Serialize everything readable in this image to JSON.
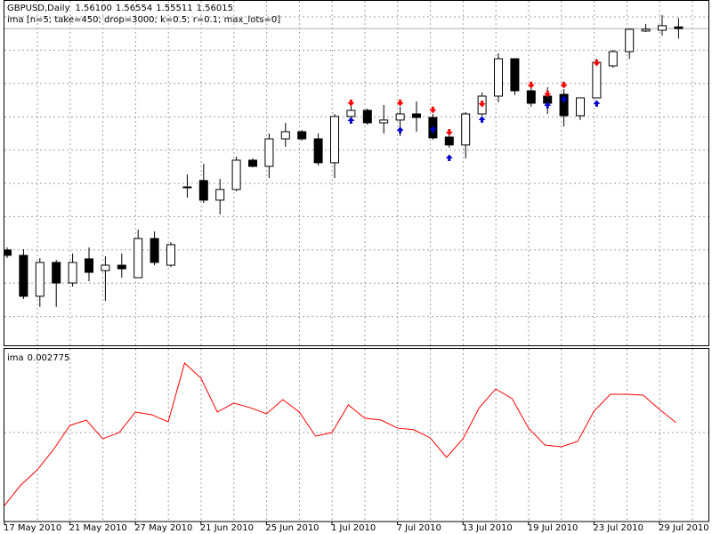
{
  "chart_data": [
    {
      "type": "candlestick",
      "title": "GBPUSD,Daily",
      "subtitle": "ima [n=5; take=450; drop=3000; k=0.5; r=0.1; max_lots=0]",
      "categories": [
        "17 May 2010",
        null,
        null,
        null,
        "21 May 2010",
        null,
        null,
        null,
        "27 May 2010",
        null,
        null,
        null,
        "21 Jun 2010",
        null,
        null,
        null,
        "25 Jun 2010",
        null,
        null,
        null,
        "1 Jul 2010",
        null,
        null,
        null,
        "7 Jul 2010",
        null,
        null,
        null,
        "13 Jul 2010",
        null,
        null,
        null,
        "19 Jul 2010",
        null,
        null,
        null,
        "23 Jul 2010",
        null,
        null,
        null,
        "29 Jul 2010",
        null
      ],
      "open": [
        1.4482,
        1.4455,
        1.4248,
        1.4419,
        1.4315,
        1.4437,
        1.4378,
        1.4405,
        1.4342,
        1.454,
        1.4405,
        1.4801,
        1.4833,
        1.4734,
        1.4788,
        1.4936,
        1.4905,
        1.5044,
        1.508,
        1.5044,
        1.4923,
        1.5157,
        1.5188,
        1.5125,
        1.5139,
        1.517,
        1.5152,
        1.5053,
        1.5013,
        1.517,
        1.526,
        1.5449,
        1.5287,
        1.526,
        1.5269,
        1.5161,
        1.5251,
        1.5413,
        1.5485,
        1.5589,
        1.5593,
        1.561
      ],
      "high": [
        1.4495,
        1.4486,
        1.4441,
        1.4432,
        1.4464,
        1.4495,
        1.445,
        1.4464,
        1.4585,
        1.4576,
        1.4522,
        1.4864,
        1.4918,
        1.4842,
        1.4954,
        1.4945,
        1.5071,
        1.5125,
        1.5089,
        1.5071,
        1.517,
        1.5215,
        1.5197,
        1.5215,
        1.5206,
        1.5233,
        1.517,
        1.5094,
        1.5179,
        1.5278,
        1.5476,
        1.5449,
        1.5314,
        1.5305,
        1.5296,
        1.5251,
        1.5449,
        1.5494,
        1.5602,
        1.5625,
        1.567,
        1.56554
      ],
      "low": [
        1.4441,
        1.4234,
        1.4194,
        1.4194,
        1.4297,
        1.4324,
        1.4225,
        1.4342,
        1.4342,
        1.4405,
        1.4396,
        1.4747,
        1.472,
        1.4662,
        1.4779,
        1.49,
        1.4846,
        1.5004,
        1.5035,
        1.4909,
        1.4846,
        1.5125,
        1.5116,
        1.5071,
        1.5058,
        1.508,
        1.504,
        1.4999,
        1.4945,
        1.5161,
        1.5229,
        1.5265,
        1.5206,
        1.517,
        1.5107,
        1.5139,
        1.5251,
        1.5404,
        1.5449,
        1.5584,
        1.5566,
        1.55511
      ],
      "close": [
        1.4455,
        1.4248,
        1.4419,
        1.4315,
        1.4419,
        1.4369,
        1.4405,
        1.4387,
        1.454,
        1.4419,
        1.4509,
        1.4797,
        1.4734,
        1.4788,
        1.4936,
        1.4905,
        1.5044,
        1.508,
        1.5044,
        1.4923,
        1.5157,
        1.5188,
        1.5125,
        1.5139,
        1.517,
        1.5152,
        1.5049,
        1.5013,
        1.517,
        1.526,
        1.5449,
        1.5287,
        1.5224,
        1.5224,
        1.5161,
        1.5251,
        1.5431,
        1.5485,
        1.5598,
        1.5598,
        1.5616,
        1.56015
      ],
      "last_labels": {
        "open": "1.56100",
        "high": "1.56554",
        "low": "1.55511",
        "close": "1.56015"
      },
      "sell_signals": [
        null,
        null,
        null,
        null,
        null,
        null,
        null,
        null,
        null,
        null,
        null,
        null,
        null,
        null,
        null,
        null,
        null,
        null,
        null,
        null,
        null,
        1.522,
        null,
        null,
        1.522,
        null,
        1.5184,
        1.5071,
        null,
        1.5215,
        null,
        null,
        1.531,
        1.5265,
        1.531,
        null,
        1.5422,
        null,
        null,
        null,
        null,
        null
      ],
      "buy_signals": [
        null,
        null,
        null,
        null,
        null,
        null,
        null,
        null,
        null,
        null,
        null,
        null,
        null,
        null,
        null,
        null,
        null,
        null,
        null,
        null,
        null,
        1.5143,
        null,
        null,
        1.5094,
        null,
        1.5098,
        1.4954,
        null,
        1.5148,
        null,
        null,
        null,
        1.522,
        1.5251,
        null,
        1.5229,
        null,
        null,
        null,
        null,
        null
      ],
      "ylim": [
        1.4,
        1.5746
      ],
      "up_color": "#ffffff",
      "down_color": "#000000",
      "sell_color": "#ff0000",
      "buy_color": "#0000cc"
    },
    {
      "type": "line",
      "title": "ima",
      "values": [
        -0.00288,
        -0.00149,
        -0.00046,
        0.00094,
        0.00258,
        0.00294,
        0.00167,
        0.00209,
        0.00349,
        0.00331,
        0.00282,
        0.00683,
        0.0058,
        0.00349,
        0.0041,
        0.00379,
        0.00337,
        0.00434,
        0.00349,
        0.00185,
        0.00209,
        0.00398,
        0.00307,
        0.00294,
        0.0024,
        0.00228,
        0.00173,
        0.0004,
        0.00167,
        0.00379,
        0.00507,
        0.0044,
        0.0024,
        0.00124,
        0.00112,
        0.00149,
        0.00355,
        0.0047,
        0.0047,
        0.00464,
        0.00367,
        0.002775
      ],
      "ylim": [
        -0.0041,
        0.0078
      ],
      "color": "#ff0000"
    }
  ]
}
